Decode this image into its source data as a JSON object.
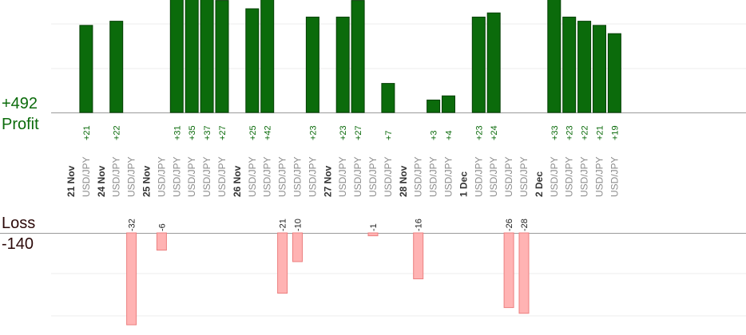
{
  "chart_data": {
    "type": "bar",
    "summary": {
      "profit_total": "+492",
      "profit_label": "Profit",
      "loss_label": "Loss",
      "loss_total": "-140"
    },
    "columns": [
      {
        "date": "21 Nov"
      },
      {
        "pair": "USD/JPY",
        "profit": 21,
        "profit_label": "+21"
      },
      {
        "date": "24 Nov"
      },
      {
        "pair": "USD/JPY",
        "profit": 22,
        "profit_label": "+22"
      },
      {
        "pair": "USD/JPY",
        "loss": 32,
        "loss_label": "-32"
      },
      {
        "date": "25 Nov"
      },
      {
        "pair": "USD/JPY",
        "loss": 6,
        "loss_label": "-6"
      },
      {
        "pair": "USD/JPY",
        "profit": 31,
        "profit_label": "+31"
      },
      {
        "pair": "USD/JPY",
        "profit": 35,
        "profit_label": "+35"
      },
      {
        "pair": "USD/JPY",
        "profit": 37,
        "profit_label": "+37"
      },
      {
        "pair": "USD/JPY",
        "profit": 27,
        "profit_label": "+27"
      },
      {
        "date": "26 Nov"
      },
      {
        "pair": "USD/JPY",
        "profit": 25,
        "profit_label": "+25"
      },
      {
        "pair": "USD/JPY",
        "profit": 42,
        "profit_label": "+42"
      },
      {
        "pair": "USD/JPY",
        "loss": 21,
        "loss_label": "-21"
      },
      {
        "pair": "USD/JPY",
        "loss": 10,
        "loss_label": "-10"
      },
      {
        "pair": "USD/JPY",
        "profit": 23,
        "profit_label": "+23"
      },
      {
        "date": "27 Nov"
      },
      {
        "pair": "USD/JPY",
        "profit": 23,
        "profit_label": "+23"
      },
      {
        "pair": "USD/JPY",
        "profit": 27,
        "profit_label": "+27"
      },
      {
        "pair": "USD/JPY",
        "loss": 1,
        "loss_label": "-1"
      },
      {
        "pair": "USD/JPY",
        "profit": 7,
        "profit_label": "+7"
      },
      {
        "date": "28 Nov"
      },
      {
        "pair": "USD/JPY",
        "loss": 16,
        "loss_label": "-16"
      },
      {
        "pair": "USD/JPY",
        "profit": 3,
        "profit_label": "+3"
      },
      {
        "pair": "USD/JPY",
        "profit": 4,
        "profit_label": "+4"
      },
      {
        "date": "1 Dec"
      },
      {
        "pair": "USD/JPY",
        "profit": 23,
        "profit_label": "+23"
      },
      {
        "pair": "USD/JPY",
        "profit": 24,
        "profit_label": "+24"
      },
      {
        "pair": "USD/JPY",
        "loss": 26,
        "loss_label": "-26"
      },
      {
        "pair": "USD/JPY",
        "loss": 28,
        "loss_label": "-28"
      },
      {
        "date": "2 Dec"
      },
      {
        "pair": "USD/JPY",
        "profit": 33,
        "profit_label": "+33"
      },
      {
        "pair": "USD/JPY",
        "profit": 23,
        "profit_label": "+23"
      },
      {
        "pair": "USD/JPY",
        "profit": 22,
        "profit_label": "+22"
      },
      {
        "pair": "USD/JPY",
        "profit": 21,
        "profit_label": "+21"
      },
      {
        "pair": "USD/JPY",
        "profit": 19,
        "profit_label": "+19"
      }
    ],
    "colors": {
      "profit_bar": "#0b6b0b",
      "loss_bar": "#ffb3b3",
      "loss_bar_border": "#ec7f7f",
      "profit_text": "#0b6b0b",
      "loss_text": "#2b0808"
    },
    "grid": true
  }
}
